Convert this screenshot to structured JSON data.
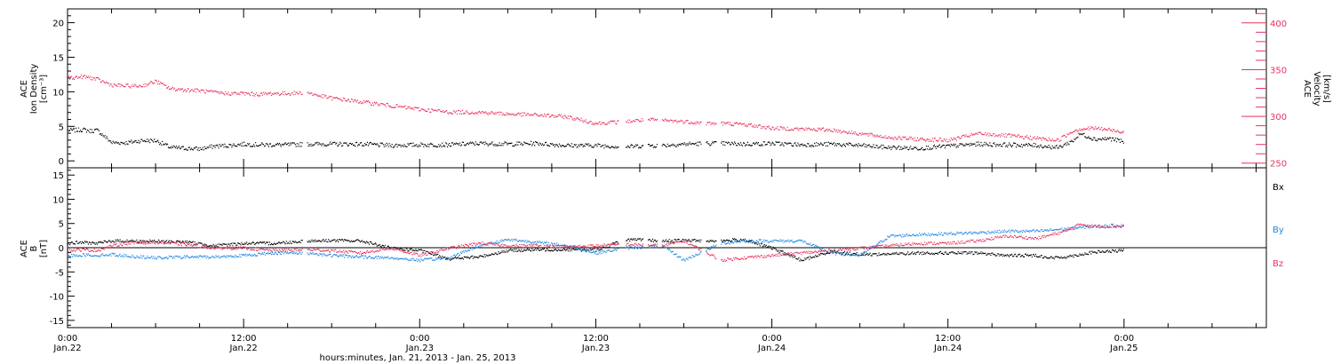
{
  "colors": {
    "density": "#000000",
    "velocity": "#e8335f",
    "bx": "#000000",
    "by": "#1e88e5",
    "bz": "#e8335f",
    "axis": "#000000"
  },
  "xaxis": {
    "title": "hours:minutes, Jan. 21, 2013 - Jan. 25, 2013",
    "range_hours": [
      0,
      81.7
    ],
    "ticks": [
      {
        "h": 0,
        "time": "0:00",
        "date": "Jan.22"
      },
      {
        "h": 12,
        "time": "12:00",
        "date": "Jan.22"
      },
      {
        "h": 24,
        "time": "0:00",
        "date": "Jan.23"
      },
      {
        "h": 36,
        "time": "12:00",
        "date": "Jan.23"
      },
      {
        "h": 48,
        "time": "0:00",
        "date": "Jan.24"
      },
      {
        "h": 60,
        "time": "12:00",
        "date": "Jan.24"
      },
      {
        "h": 72,
        "time": "0:00",
        "date": "Jan.25"
      }
    ]
  },
  "chart_data": [
    {
      "type": "scatter",
      "panel": "plasma",
      "ylabel_left": [
        "ACE",
        "Ion Density",
        "[cm⁻³]"
      ],
      "ylabel_right": [
        "ACE",
        "Velocity",
        "[km/s]"
      ],
      "ylim_left": [
        -1,
        22
      ],
      "yticks_left": [
        "0",
        "5",
        "10",
        "15",
        "20"
      ],
      "ylim_right": [
        245,
        415
      ],
      "yticks_right": [
        "250",
        "300",
        "350",
        "400"
      ],
      "series": [
        {
          "axis": "left",
          "x": [
            0,
            0.5,
            1,
            1.5,
            2,
            3,
            4,
            5,
            6,
            7,
            8,
            9,
            10,
            11,
            12,
            13,
            14,
            15,
            16.3,
            17,
            18,
            20,
            22,
            24,
            26,
            28,
            30,
            32,
            34,
            36,
            38,
            39.5,
            40.5,
            42,
            43.5,
            44.5,
            46,
            48,
            50,
            52,
            54,
            56,
            58,
            60,
            62,
            64,
            66,
            67.5,
            68.5,
            69,
            70,
            71,
            72
          ],
          "y": [
            4.5,
            4.5,
            4.6,
            4.4,
            4.5,
            2.7,
            2.7,
            3.0,
            3.0,
            2.0,
            1.9,
            1.8,
            2.2,
            2.3,
            2.5,
            2.4,
            2.4,
            2.4,
            2.5,
            2.5,
            2.5,
            2.5,
            2.3,
            2.4,
            2.4,
            2.6,
            2.5,
            2.6,
            2.3,
            2.3,
            2.1,
            2.3,
            2.3,
            2.5,
            2.6,
            2.6,
            2.5,
            2.6,
            2.4,
            2.5,
            2.3,
            2.0,
            1.9,
            2.2,
            2.5,
            2.4,
            2.3,
            2.0,
            3.0,
            4.0,
            3.2,
            3.3,
            2.8
          ]
        },
        {
          "axis": "right",
          "x": [
            0,
            0.5,
            1,
            1.5,
            2,
            3,
            4,
            5,
            6,
            7,
            8,
            9,
            10,
            11,
            12,
            13,
            14,
            15,
            16.3,
            17,
            18,
            20,
            22,
            24,
            26,
            28,
            30,
            32,
            34,
            36,
            38,
            39.5,
            40.5,
            42,
            43.5,
            44.5,
            46,
            48,
            50,
            52,
            54,
            56,
            58,
            60,
            62,
            64,
            66,
            67.5,
            68.5,
            69,
            70,
            71,
            72
          ],
          "y": [
            342,
            342,
            343,
            342,
            340,
            334,
            333,
            333,
            338,
            330,
            329,
            328,
            326,
            325,
            325,
            324,
            325,
            325,
            326,
            323,
            320,
            316,
            312,
            308,
            305,
            305,
            303,
            302,
            300,
            293,
            295,
            297,
            296,
            295,
            293,
            293,
            292,
            288,
            287,
            286,
            282,
            278,
            276,
            275,
            282,
            280,
            277,
            275,
            285,
            287,
            288,
            286,
            284
          ]
        }
      ],
      "gaps_hours": [
        [
          16.0,
          16.3
        ],
        [
          37.5,
          38.0
        ],
        [
          39.2,
          39.5
        ],
        [
          40.2,
          40.5
        ],
        [
          43.2,
          43.5
        ],
        [
          44.2,
          44.5
        ]
      ]
    },
    {
      "type": "scatter",
      "panel": "magnetic",
      "ylabel_left": [
        "ACE",
        "B",
        "[nT]"
      ],
      "ylim": [
        -16.5,
        16.5
      ],
      "yticks": [
        "-15",
        "-10",
        "-5",
        "0",
        "5",
        "10",
        "15"
      ],
      "series": [
        {
          "name": "Bx",
          "x": [
            0,
            1,
            2,
            3,
            4,
            6,
            8,
            10,
            12,
            14,
            16.3,
            18,
            20,
            22,
            24,
            26,
            28,
            30,
            32,
            34,
            36,
            38,
            40.5,
            42,
            44.5,
            46,
            48,
            50,
            52,
            54,
            56,
            58,
            60,
            62,
            64,
            66,
            67,
            68,
            70,
            72
          ],
          "y": [
            1.0,
            1.2,
            1.0,
            1.5,
            1.5,
            1.4,
            1.3,
            0.5,
            1.0,
            1.0,
            1.5,
            1.6,
            1.5,
            0.0,
            -0.5,
            -2.2,
            -1.8,
            -0.5,
            -0.3,
            -0.3,
            -0.4,
            1.8,
            1.5,
            1.6,
            1.5,
            1.8,
            0.0,
            -2.5,
            -0.7,
            -1.3,
            -1.2,
            -1.0,
            -1.0,
            -1.0,
            -1.5,
            -1.5,
            -2.0,
            -1.8,
            -0.8,
            -0.5
          ]
        },
        {
          "name": "By",
          "x": [
            0,
            1,
            2,
            3,
            4,
            6,
            8,
            10,
            12,
            14,
            16.3,
            18,
            20,
            22,
            24,
            26,
            28,
            30,
            32,
            34,
            36,
            38,
            40.5,
            42,
            44.5,
            46,
            48,
            50,
            52,
            54,
            56,
            58,
            60,
            62,
            64,
            66,
            68,
            70,
            72
          ],
          "y": [
            -1.5,
            -1.4,
            -1.5,
            -1.3,
            -1.6,
            -2.0,
            -1.8,
            -1.8,
            -1.5,
            -1.0,
            -1.0,
            -1.5,
            -1.8,
            -2.0,
            -2.5,
            -2.0,
            0.5,
            1.8,
            1.2,
            0.5,
            -1.0,
            0.0,
            0.5,
            -2.5,
            1.0,
            1.5,
            1.5,
            1.5,
            -1.0,
            -1.5,
            2.5,
            2.8,
            3.0,
            3.2,
            3.5,
            3.5,
            4.0,
            4.5,
            4.8
          ]
        },
        {
          "name": "Bz",
          "x": [
            0,
            1,
            2,
            3,
            4,
            6,
            8,
            10,
            12,
            14,
            16.3,
            18,
            20,
            22,
            24,
            26,
            28,
            30,
            32,
            34,
            36,
            38,
            40.5,
            42,
            44.5,
            46,
            48,
            50,
            52,
            54,
            56,
            58,
            60,
            62,
            64,
            66,
            68,
            69,
            70,
            72
          ],
          "y": [
            -0.5,
            -0.3,
            -0.5,
            0.5,
            1.0,
            1.2,
            0.8,
            0.0,
            0.0,
            -0.5,
            -0.3,
            -0.5,
            -1.0,
            0.0,
            -1.5,
            0.0,
            1.0,
            0.5,
            0.5,
            0.3,
            0.5,
            0.8,
            0.5,
            1.5,
            -2.5,
            -2.0,
            -1.5,
            -1.0,
            -0.5,
            0.0,
            0.5,
            1.0,
            1.0,
            1.5,
            2.5,
            2.0,
            3.5,
            5.0,
            4.5,
            4.5
          ]
        }
      ],
      "gaps_hours": [
        [
          16.0,
          16.3
        ],
        [
          37.5,
          38.0
        ],
        [
          39.2,
          39.5
        ],
        [
          40.2,
          40.5
        ],
        [
          43.2,
          43.5
        ],
        [
          44.2,
          44.5
        ]
      ]
    }
  ]
}
